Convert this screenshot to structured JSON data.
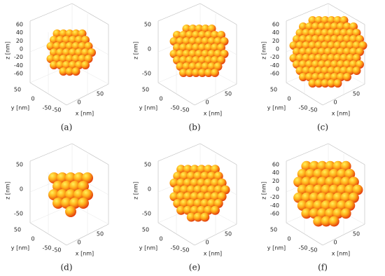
{
  "panels": [
    {
      "caption": "(a)",
      "x_label": "x [nm]",
      "y_label": "y [nm]",
      "z_label": "z [nm]",
      "zticks": [
        60,
        40,
        20,
        0,
        -20,
        -40,
        -60
      ],
      "xticks": [
        -50,
        0,
        50
      ],
      "yticks": [
        50,
        0,
        -50
      ]
    },
    {
      "caption": "(b)",
      "x_label": "x [nm]",
      "y_label": "y [nm]",
      "z_label": "z [nm]",
      "zticks": [
        50,
        0,
        -50
      ],
      "xticks": [
        -50,
        0,
        50
      ],
      "yticks": [
        50,
        0,
        -50
      ]
    },
    {
      "caption": "(c)",
      "x_label": "x [nm]",
      "y_label": "y [nm]",
      "z_label": "z [nm]",
      "zticks": [
        60,
        40,
        20,
        0,
        -20,
        -40,
        -60
      ],
      "xticks": [
        -50,
        0,
        50
      ],
      "yticks": [
        50,
        0,
        -50
      ]
    },
    {
      "caption": "(d)",
      "x_label": "x [nm]",
      "y_label": "y [nm]",
      "z_label": "z [nm]",
      "zticks": [
        50,
        0,
        -50
      ],
      "xticks": [
        -50,
        0,
        50
      ],
      "yticks": [
        50,
        0,
        -50
      ]
    },
    {
      "caption": "(e)",
      "x_label": "x [nm]",
      "y_label": "y [nm]",
      "z_label": "z [nm]",
      "zticks": [
        50,
        0,
        -50
      ],
      "xticks": [
        -50,
        0,
        50
      ],
      "yticks": [
        50,
        0,
        -50
      ]
    },
    {
      "caption": "(f)",
      "x_label": "x [nm]",
      "y_label": "y [nm]",
      "z_label": "z [nm]",
      "zticks": [
        60,
        40,
        20,
        0,
        -20,
        -40,
        -60
      ],
      "xticks": [
        -50,
        0,
        50
      ],
      "yticks": [
        50,
        0,
        -50
      ]
    }
  ]
}
